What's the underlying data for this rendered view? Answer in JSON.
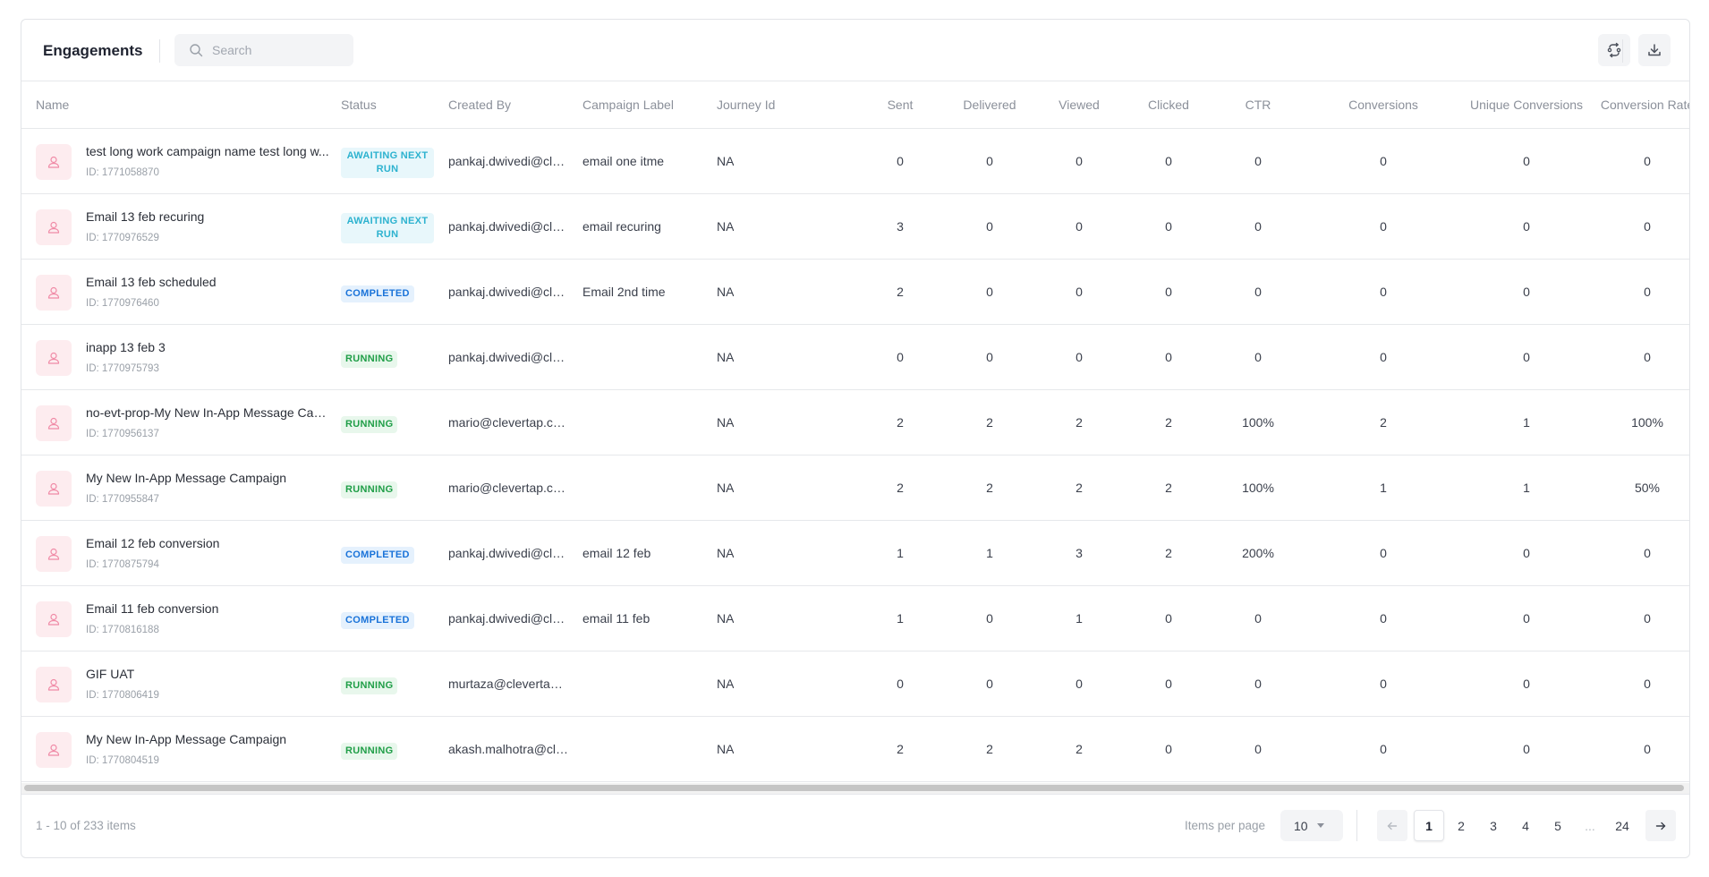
{
  "header": {
    "title": "Engagements",
    "search_placeholder": "Search"
  },
  "columns": [
    "Name",
    "Status",
    "Created By",
    "Campaign Label",
    "Journey Id",
    "Sent",
    "Delivered",
    "Viewed",
    "Clicked",
    "CTR",
    "Conversions",
    "Unique Conversions",
    "Conversion Rate"
  ],
  "rows": [
    {
      "name": "test long work campaign name test long w...",
      "id": "ID: 1771058870",
      "status": "AWAITING NEXT RUN",
      "status_kind": "awaiting",
      "created_by": "pankaj.dwivedi@cle...",
      "label": "email one itme",
      "journey": "NA",
      "sent": "0",
      "delivered": "0",
      "viewed": "0",
      "clicked": "0",
      "ctr": "0",
      "conversions": "0",
      "unique": "0",
      "rate": "0"
    },
    {
      "name": "Email 13 feb recuring",
      "id": "ID: 1770976529",
      "status": "AWAITING NEXT RUN",
      "status_kind": "awaiting",
      "created_by": "pankaj.dwivedi@cle...",
      "label": "email recuring",
      "journey": "NA",
      "sent": "3",
      "delivered": "0",
      "viewed": "0",
      "clicked": "0",
      "ctr": "0",
      "conversions": "0",
      "unique": "0",
      "rate": "0"
    },
    {
      "name": "Email 13 feb scheduled",
      "id": "ID: 1770976460",
      "status": "COMPLETED",
      "status_kind": "completed",
      "created_by": "pankaj.dwivedi@cle...",
      "label": "Email 2nd time",
      "journey": "NA",
      "sent": "2",
      "delivered": "0",
      "viewed": "0",
      "clicked": "0",
      "ctr": "0",
      "conversions": "0",
      "unique": "0",
      "rate": "0"
    },
    {
      "name": "inapp 13 feb 3",
      "id": "ID: 1770975793",
      "status": "RUNNING",
      "status_kind": "running",
      "created_by": "pankaj.dwivedi@cle...",
      "label": "",
      "journey": "NA",
      "sent": "0",
      "delivered": "0",
      "viewed": "0",
      "clicked": "0",
      "ctr": "0",
      "conversions": "0",
      "unique": "0",
      "rate": "0"
    },
    {
      "name": "no-evt-prop-My New In-App Message Cam...",
      "id": "ID: 1770956137",
      "status": "RUNNING",
      "status_kind": "running",
      "created_by": "mario@clevertap.com",
      "label": "",
      "journey": "NA",
      "sent": "2",
      "delivered": "2",
      "viewed": "2",
      "clicked": "2",
      "ctr": "100%",
      "conversions": "2",
      "unique": "1",
      "rate": "100%"
    },
    {
      "name": "My New In-App Message Campaign",
      "id": "ID: 1770955847",
      "status": "RUNNING",
      "status_kind": "running",
      "created_by": "mario@clevertap.com",
      "label": "",
      "journey": "NA",
      "sent": "2",
      "delivered": "2",
      "viewed": "2",
      "clicked": "2",
      "ctr": "100%",
      "conversions": "1",
      "unique": "1",
      "rate": "50%"
    },
    {
      "name": "Email 12 feb conversion",
      "id": "ID: 1770875794",
      "status": "COMPLETED",
      "status_kind": "completed",
      "created_by": "pankaj.dwivedi@cle...",
      "label": "email 12 feb",
      "journey": "NA",
      "sent": "1",
      "delivered": "1",
      "viewed": "3",
      "clicked": "2",
      "ctr": "200%",
      "conversions": "0",
      "unique": "0",
      "rate": "0"
    },
    {
      "name": "Email 11 feb conversion",
      "id": "ID: 1770816188",
      "status": "COMPLETED",
      "status_kind": "completed",
      "created_by": "pankaj.dwivedi@cle...",
      "label": "email 11 feb",
      "journey": "NA",
      "sent": "1",
      "delivered": "0",
      "viewed": "1",
      "clicked": "0",
      "ctr": "0",
      "conversions": "0",
      "unique": "0",
      "rate": "0"
    },
    {
      "name": "GIF UAT",
      "id": "ID: 1770806419",
      "status": "RUNNING",
      "status_kind": "running",
      "created_by": "murtaza@clevertap....",
      "label": "",
      "journey": "NA",
      "sent": "0",
      "delivered": "0",
      "viewed": "0",
      "clicked": "0",
      "ctr": "0",
      "conversions": "0",
      "unique": "0",
      "rate": "0"
    },
    {
      "name": "My New In-App Message Campaign",
      "id": "ID: 1770804519",
      "status": "RUNNING",
      "status_kind": "running",
      "created_by": "akash.malhotra@cle...",
      "label": "",
      "journey": "NA",
      "sent": "2",
      "delivered": "2",
      "viewed": "2",
      "clicked": "0",
      "ctr": "0",
      "conversions": "0",
      "unique": "0",
      "rate": "0"
    }
  ],
  "footer": {
    "range": "1 - 10 of 233 items",
    "items_per_page_label": "Items per page",
    "items_per_page": "10",
    "pages": [
      "1",
      "2",
      "3",
      "4",
      "5",
      "...",
      "24"
    ],
    "current_page": "1"
  },
  "colors": {
    "awaiting": "#2cb2cf",
    "completed": "#1a73d9",
    "running": "#1f9e47",
    "avatar_bg": "#fdecef"
  },
  "icons": {
    "search": "search-icon",
    "refresh": "refresh-icon",
    "download": "download-icon",
    "avatar": "user-icon",
    "prev": "arrow-left-icon",
    "next": "arrow-right-icon"
  }
}
